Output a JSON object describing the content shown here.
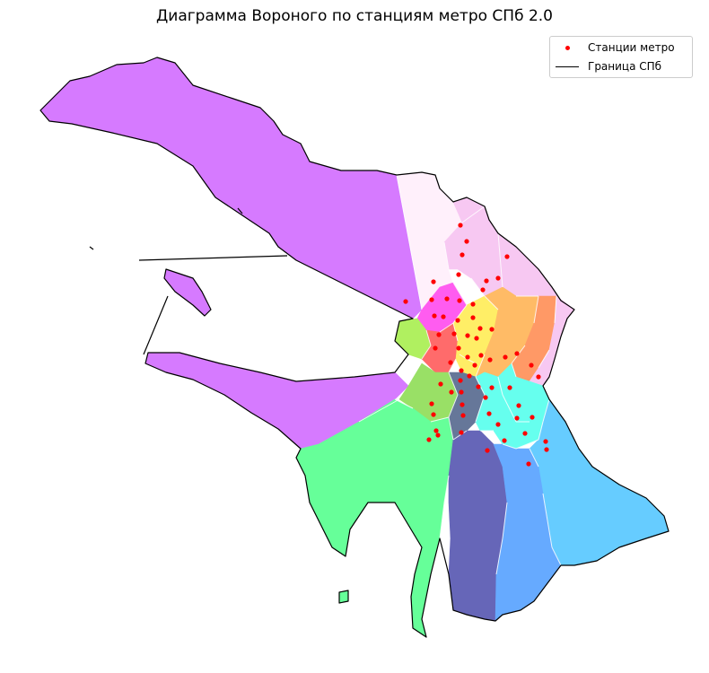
{
  "title": "Диаграмма Вороного по станциям метро СПб 2.0",
  "legend": {
    "stations_label": "Станции метро",
    "border_label": "Граница СПб",
    "location": "upper right"
  },
  "colors": {
    "station": "#ff0000",
    "border": "#000000",
    "cell_edge": "#ffffff",
    "north_west": "#d67aff",
    "north_pale": "#fff0fb",
    "north_pink": "#f7c8f2",
    "north_magenta": "#ff5cf0",
    "center_red": "#ff6b6b",
    "center_yellow": "#ffee66",
    "center_orange": "#ffbb66",
    "east_orange": "#ff9966",
    "west_lime": "#b0f060",
    "green": "#66ff99",
    "mid_green": "#99e066",
    "slate": "#667799",
    "cyan": "#66ffee",
    "light_blue": "#66ccff",
    "blue": "#66aaff",
    "indigo": "#6666b8"
  },
  "stations_shown": 64,
  "icons": [
    "station-marker-icon",
    "border-line-icon"
  ]
}
